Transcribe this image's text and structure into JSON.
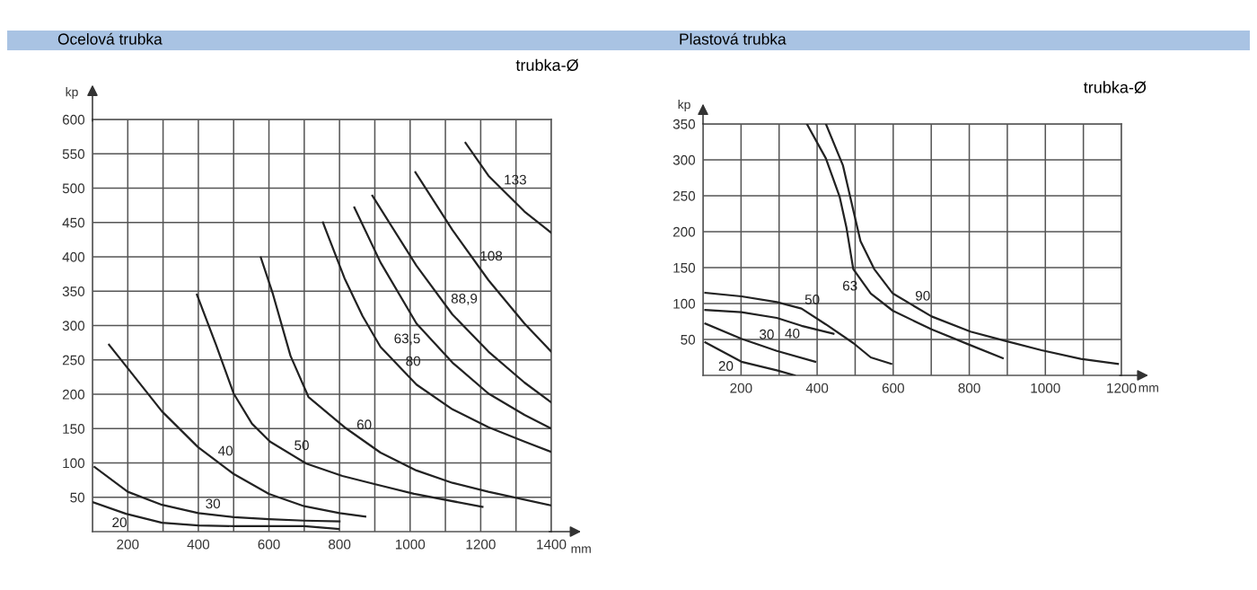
{
  "chart_data": [
    {
      "type": "line",
      "title": "Ocelová trubka",
      "xlabel": "mm",
      "ylabel": "kp",
      "xlim": [
        100,
        1400
      ],
      "ylim": [
        0,
        600
      ],
      "xticks": [
        {
          "value": 100,
          "label": null
        },
        200,
        {
          "value": 300,
          "label": null
        },
        400,
        {
          "value": 500,
          "label": null
        },
        600,
        {
          "value": 700,
          "label": null
        },
        800,
        {
          "value": 900,
          "label": null
        },
        1000,
        {
          "value": 1100,
          "label": null
        },
        1200,
        {
          "value": 1300,
          "label": null
        },
        1400
      ],
      "yticks": [
        50,
        100,
        150,
        200,
        250,
        300,
        350,
        400,
        450,
        500,
        550,
        600
      ],
      "grid": true,
      "marker": "none",
      "line_style": "solid",
      "series": [
        {
          "name": "20",
          "color": "#222222",
          "x": [
            100,
            195,
            297,
            400,
            500,
            600,
            700,
            797
          ],
          "values": [
            43,
            26,
            13,
            9,
            8,
            8,
            8,
            4
          ]
        },
        {
          "name": "30",
          "color": "#222222",
          "x": [
            106,
            200,
            297,
            400,
            500,
            600,
            700,
            800
          ],
          "values": [
            94,
            58,
            39,
            27,
            21,
            18,
            16,
            15
          ]
        },
        {
          "name": "40",
          "color": "#222222",
          "x": [
            147,
            195,
            297,
            399,
            500,
            600,
            700,
            800,
            873
          ],
          "values": [
            272,
            241,
            175,
            123,
            84,
            55,
            37,
            27,
            22
          ]
        },
        {
          "name": "50",
          "color": "#222222",
          "x": [
            396,
            450,
            500,
            552,
            603,
            706,
            808,
            909,
            1011,
            1205
          ],
          "values": [
            345,
            272,
            201,
            157,
            131,
            99,
            81,
            68,
            55,
            36
          ]
        },
        {
          "name": "60",
          "color": "#222222",
          "x": [
            577,
            610,
            661,
            712,
            814,
            916,
            1018,
            1120,
            1222,
            1400
          ],
          "values": [
            399,
            348,
            256,
            196,
            152,
            115,
            89,
            71,
            58,
            38
          ]
        },
        {
          "name": "80",
          "color": "#222222",
          "x": [
            753,
            814,
            865,
            916,
            1018,
            1120,
            1222,
            1324,
            1400
          ],
          "values": [
            450,
            369,
            314,
            269,
            214,
            178,
            152,
            131,
            116
          ]
        },
        {
          "name": "63,5",
          "color": "#222222",
          "x": [
            842,
            916,
            1018,
            1120,
            1222,
            1324,
            1400
          ],
          "values": [
            472,
            392,
            303,
            246,
            201,
            170,
            150
          ]
        },
        {
          "name": "88,9",
          "color": "#222222",
          "x": [
            893,
            1018,
            1120,
            1222,
            1324,
            1400
          ],
          "values": [
            489,
            387,
            316,
            262,
            217,
            188
          ]
        },
        {
          "name": "108",
          "color": "#222222",
          "x": [
            1015,
            1120,
            1222,
            1324,
            1400
          ],
          "values": [
            523,
            439,
            366,
            303,
            262
          ]
        },
        {
          "name": "133",
          "color": "#222222",
          "x": [
            1157,
            1222,
            1324,
            1400
          ],
          "values": [
            566,
            518,
            466,
            435
          ]
        }
      ],
      "annotations": [
        "trubka-Ø"
      ]
    },
    {
      "type": "line",
      "title": "Plastová trubka",
      "xlabel": "mm",
      "ylabel": "kp",
      "xlim": [
        100,
        1200
      ],
      "ylim": [
        0,
        350
      ],
      "xticks": [
        {
          "value": 100,
          "label": null
        },
        200,
        {
          "value": 300,
          "label": null
        },
        400,
        {
          "value": 500,
          "label": null
        },
        600,
        {
          "value": 700,
          "label": null
        },
        800,
        {
          "value": 900,
          "label": null
        },
        1000,
        {
          "value": 1100,
          "label": null
        },
        1200
      ],
      "yticks": [
        50,
        100,
        150,
        200,
        250,
        300,
        350
      ],
      "grid": true,
      "marker": "none",
      "line_style": "solid",
      "series": [
        {
          "name": "20",
          "color": "#222222",
          "x": [
            106,
            201,
            294,
            341
          ],
          "values": [
            46,
            19,
            7,
            0
          ]
        },
        {
          "name": "30",
          "color": "#222222",
          "x": [
            106,
            201,
            294,
            395
          ],
          "values": [
            72,
            51,
            34,
            19
          ]
        },
        {
          "name": "40",
          "color": "#222222",
          "x": [
            106,
            201,
            294,
            359,
            443
          ],
          "values": [
            91,
            88,
            80,
            69,
            58
          ]
        },
        {
          "name": "50",
          "color": "#222222",
          "x": [
            106,
            201,
            294,
            359,
            423,
            495,
            541,
            595
          ],
          "values": [
            115,
            110,
            102,
            93,
            71,
            45,
            25,
            16
          ]
        },
        {
          "name": "63",
          "color": "#222222",
          "x": [
            373,
            423,
            459,
            477,
            495,
            541,
            599,
            701,
            803,
            888
          ],
          "values": [
            350,
            302,
            249,
            206,
            148,
            114,
            90,
            64,
            42,
            24
          ]
        },
        {
          "name": "90",
          "color": "#222222",
          "x": [
            423,
            468,
            495,
            514,
            550,
            599,
            701,
            803,
            895,
            990,
            1093,
            1191
          ],
          "values": [
            350,
            292,
            230,
            187,
            148,
            114,
            82,
            61,
            48,
            35,
            23,
            16
          ]
        }
      ],
      "annotations": [
        "trubka-Ø"
      ]
    }
  ]
}
